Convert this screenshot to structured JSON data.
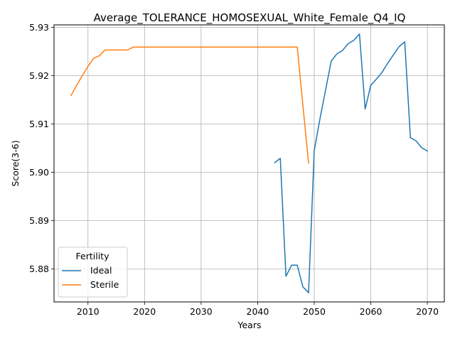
{
  "chart_data": {
    "type": "line",
    "title": "Average_TOLERANCE_HOMOSEXUAL_White_Female_Q4_IQ",
    "xlabel": "Years",
    "ylabel": "Score(3-6)",
    "xlim": [
      2004,
      2073
    ],
    "ylim": [
      5.8732,
      5.9305
    ],
    "xticks": [
      2010,
      2020,
      2030,
      2040,
      2050,
      2060,
      2070
    ],
    "yticks": [
      5.88,
      5.89,
      5.9,
      5.91,
      5.92,
      5.93
    ],
    "ytick_labels": [
      "5.88",
      "5.89",
      "5.90",
      "5.91",
      "5.92",
      "5.93"
    ],
    "grid": true,
    "legend": {
      "title": "Fertility",
      "placement": "lower-left"
    },
    "series": [
      {
        "name": "Ideal",
        "color": "#1f77b4",
        "x": [
          2043,
          2044,
          2045,
          2046,
          2047,
          2048,
          2049,
          2050,
          2051,
          2052,
          2053,
          2054,
          2055,
          2056,
          2057,
          2058,
          2059,
          2060,
          2061,
          2062,
          2063,
          2064,
          2065,
          2066,
          2067,
          2068,
          2069,
          2070
        ],
        "y": [
          5.902,
          5.9029,
          5.8785,
          5.8808,
          5.8808,
          5.8763,
          5.8751,
          5.9045,
          5.911,
          5.917,
          5.923,
          5.9245,
          5.9252,
          5.9266,
          5.9273,
          5.9286,
          5.9131,
          5.918,
          5.9193,
          5.9207,
          5.9226,
          5.9243,
          5.926,
          5.927,
          5.9072,
          5.9065,
          5.9051,
          5.9044
        ]
      },
      {
        "name": "Sterile",
        "color": "#ff7f0e",
        "x": [
          2007,
          2008,
          2009,
          2010,
          2011,
          2012,
          2013,
          2014,
          2015,
          2016,
          2017,
          2018,
          2019,
          2020,
          2025,
          2030,
          2035,
          2040,
          2045,
          2046,
          2047,
          2048,
          2049
        ],
        "y": [
          5.9159,
          5.918,
          5.92,
          5.9219,
          5.9236,
          5.9241,
          5.9253,
          5.9253,
          5.9253,
          5.9253,
          5.9253,
          5.9259,
          5.9259,
          5.9259,
          5.9259,
          5.9259,
          5.9259,
          5.9259,
          5.9259,
          5.9259,
          5.9259,
          5.9138,
          5.9019
        ]
      }
    ]
  }
}
